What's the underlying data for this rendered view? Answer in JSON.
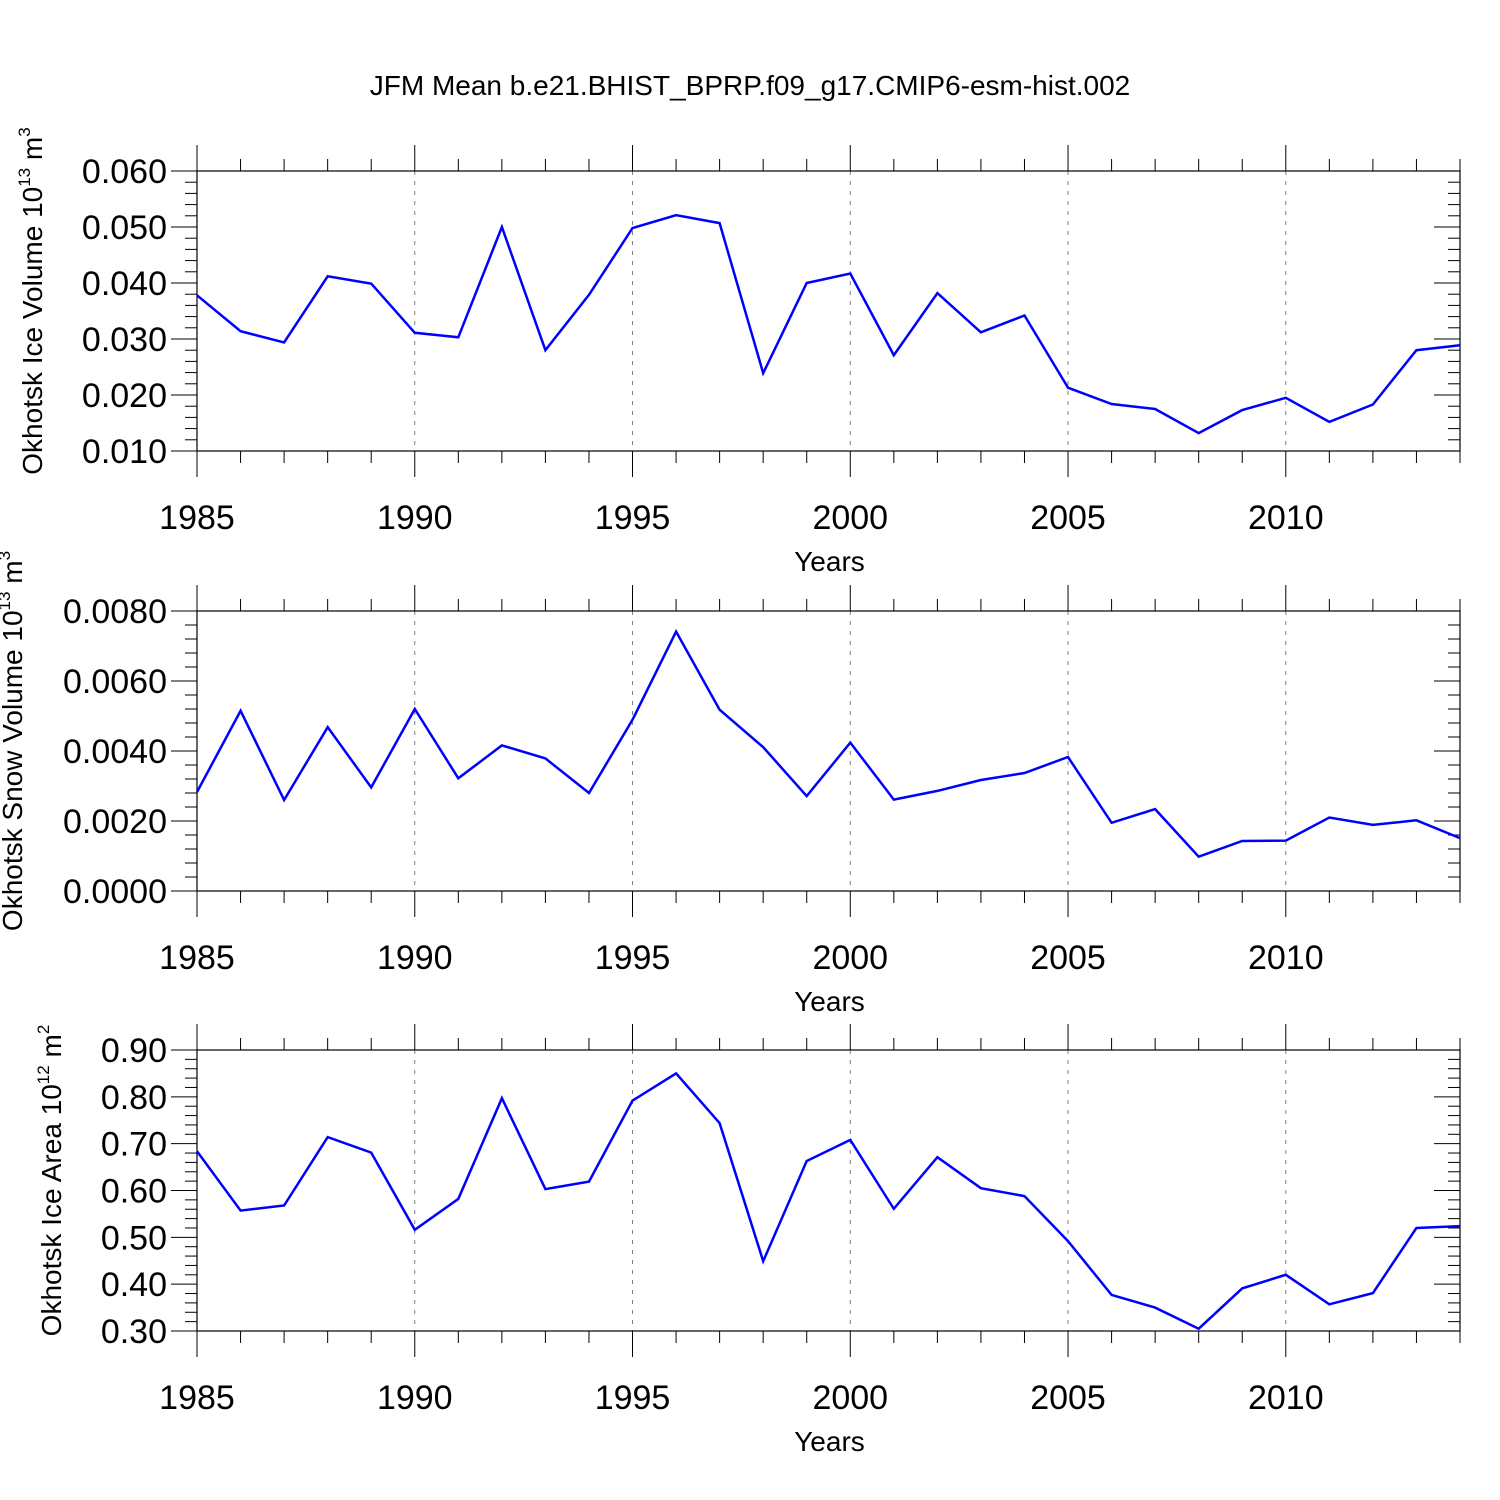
{
  "title": "JFM Mean b.e21.BHIST_BPRP.f09_g17.CMIP6-esm-hist.002",
  "colors": {
    "line": "#0000ff",
    "axis": "#000000",
    "grid": "#808080"
  },
  "chart_data": [
    {
      "type": "line",
      "ylabel": "Okhotsk Ice Volume 10",
      "ylabel_exp": "13",
      "ylabel_unit": "m",
      "ylabel_unit_exp": "3",
      "xlabel": "Years",
      "xlim": [
        1985,
        2014
      ],
      "ylim": [
        0.01,
        0.06
      ],
      "x_ticks": [
        1985,
        1990,
        1995,
        2000,
        2005,
        2010
      ],
      "x_tick_labels": [
        "1985",
        "1990",
        "1995",
        "2000",
        "2005",
        "2010"
      ],
      "y_ticks": [
        0.01,
        0.02,
        0.03,
        0.04,
        0.05,
        0.06
      ],
      "y_tick_labels": [
        "0.010",
        "0.020",
        "0.030",
        "0.040",
        "0.050",
        "0.060"
      ],
      "grid": "vertical dashed at major x ticks",
      "x": [
        1985,
        1986,
        1987,
        1988,
        1989,
        1990,
        1991,
        1992,
        1993,
        1994,
        1995,
        1996,
        1997,
        1998,
        1999,
        2000,
        2001,
        2002,
        2003,
        2004,
        2005,
        2006,
        2007,
        2008,
        2009,
        2010,
        2011,
        2012,
        2013,
        2014
      ],
      "values": [
        0.0378,
        0.0314,
        0.0294,
        0.0412,
        0.0399,
        0.0311,
        0.0303,
        0.05,
        0.028,
        0.0379,
        0.0498,
        0.0521,
        0.0507,
        0.0239,
        0.04,
        0.0417,
        0.0271,
        0.0382,
        0.0312,
        0.0342,
        0.0213,
        0.0184,
        0.0175,
        0.0132,
        0.0173,
        0.0195,
        0.0152,
        0.0183,
        0.028,
        0.0289
      ]
    },
    {
      "type": "line",
      "ylabel": "Okhotsk Snow Volume 10",
      "ylabel_exp": "13",
      "ylabel_unit": "m",
      "ylabel_unit_exp": "3",
      "xlabel": "Years",
      "xlim": [
        1985,
        2014
      ],
      "ylim": [
        0.0,
        0.008
      ],
      "x_ticks": [
        1985,
        1990,
        1995,
        2000,
        2005,
        2010
      ],
      "x_tick_labels": [
        "1985",
        "1990",
        "1995",
        "2000",
        "2005",
        "2010"
      ],
      "y_ticks": [
        0.0,
        0.002,
        0.004,
        0.006,
        0.008
      ],
      "y_tick_labels": [
        "0.0000",
        "0.0020",
        "0.0040",
        "0.0060",
        "0.0080"
      ],
      "grid": "vertical dashed at major x ticks",
      "x": [
        1985,
        1986,
        1987,
        1988,
        1989,
        1990,
        1991,
        1992,
        1993,
        1994,
        1995,
        1996,
        1997,
        1998,
        1999,
        2000,
        2001,
        2002,
        2003,
        2004,
        2005,
        2006,
        2007,
        2008,
        2009,
        2010,
        2011,
        2012,
        2013,
        2014
      ],
      "values": [
        0.00283,
        0.00515,
        0.0026,
        0.00468,
        0.00296,
        0.0052,
        0.00322,
        0.00416,
        0.00379,
        0.0028,
        0.00489,
        0.00741,
        0.00518,
        0.00411,
        0.00271,
        0.00424,
        0.00261,
        0.00286,
        0.00317,
        0.00337,
        0.00383,
        0.00195,
        0.00234,
        0.00098,
        0.00143,
        0.00144,
        0.0021,
        0.00189,
        0.00202,
        0.00151
      ]
    },
    {
      "type": "line",
      "ylabel": "Okhotsk Ice Area 10",
      "ylabel_exp": "12",
      "ylabel_unit": "m",
      "ylabel_unit_exp": "2",
      "xlabel": "Years",
      "xlim": [
        1985,
        2014
      ],
      "ylim": [
        0.3,
        0.9
      ],
      "x_ticks": [
        1985,
        1990,
        1995,
        2000,
        2005,
        2010
      ],
      "x_tick_labels": [
        "1985",
        "1990",
        "1995",
        "2000",
        "2005",
        "2010"
      ],
      "y_ticks": [
        0.3,
        0.4,
        0.5,
        0.6,
        0.7,
        0.8,
        0.9
      ],
      "y_tick_labels": [
        "0.30",
        "0.40",
        "0.50",
        "0.60",
        "0.70",
        "0.80",
        "0.90"
      ],
      "grid": "vertical dashed at major x ticks",
      "x": [
        1985,
        1986,
        1987,
        1988,
        1989,
        1990,
        1991,
        1992,
        1993,
        1994,
        1995,
        1996,
        1997,
        1998,
        1999,
        2000,
        2001,
        2002,
        2003,
        2004,
        2005,
        2006,
        2007,
        2008,
        2009,
        2010,
        2011,
        2012,
        2013,
        2014
      ],
      "values": [
        0.684,
        0.557,
        0.568,
        0.714,
        0.681,
        0.516,
        0.582,
        0.797,
        0.603,
        0.619,
        0.792,
        0.85,
        0.744,
        0.449,
        0.663,
        0.708,
        0.561,
        0.671,
        0.605,
        0.588,
        0.492,
        0.377,
        0.35,
        0.305,
        0.391,
        0.42,
        0.357,
        0.381,
        0.52,
        0.524
      ]
    }
  ]
}
